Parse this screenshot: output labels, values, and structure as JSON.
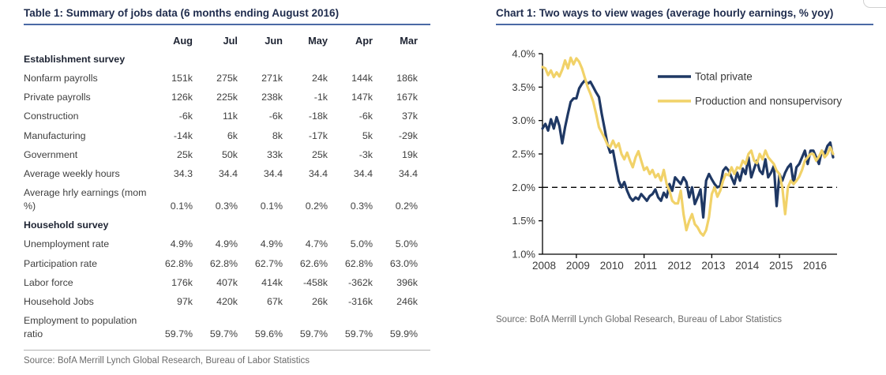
{
  "left_panel": {
    "title": "Table 1: Summary of jobs data (6 months ending August 2016)",
    "columns": [
      "Aug",
      "Jul",
      "Jun",
      "May",
      "Apr",
      "Mar"
    ],
    "rows": [
      {
        "label": "Establishment survey",
        "section": true,
        "values": [
          "",
          "",
          "",
          "",
          "",
          ""
        ]
      },
      {
        "label": "Nonfarm payrolls",
        "values": [
          "151k",
          "275k",
          "271k",
          "24k",
          "144k",
          "186k"
        ]
      },
      {
        "label": "Private payrolls",
        "values": [
          "126k",
          "225k",
          "238k",
          "-1k",
          "147k",
          "167k"
        ]
      },
      {
        "label": "Construction",
        "values": [
          "-6k",
          "11k",
          "-6k",
          "-18k",
          "-6k",
          "37k"
        ]
      },
      {
        "label": "Manufacturing",
        "values": [
          "-14k",
          "6k",
          "8k",
          "-17k",
          "5k",
          "-29k"
        ]
      },
      {
        "label": "Government",
        "values": [
          "25k",
          "50k",
          "33k",
          "25k",
          "-3k",
          "19k"
        ]
      },
      {
        "label": "Average weekly hours",
        "values": [
          "34.3",
          "34.4",
          "34.4",
          "34.4",
          "34.4",
          "34.4"
        ]
      },
      {
        "label": "Average hrly earnings (mom %)",
        "values": [
          "0.1%",
          "0.3%",
          "0.1%",
          "0.2%",
          "0.3%",
          "0.2%"
        ]
      },
      {
        "label": "Household survey",
        "section": true,
        "values": [
          "",
          "",
          "",
          "",
          "",
          ""
        ]
      },
      {
        "label": "Unemployment rate",
        "values": [
          "4.9%",
          "4.9%",
          "4.9%",
          "4.7%",
          "5.0%",
          "5.0%"
        ]
      },
      {
        "label": "Participation rate",
        "values": [
          "62.8%",
          "62.8%",
          "62.7%",
          "62.6%",
          "62.8%",
          "63.0%"
        ]
      },
      {
        "label": "Labor force",
        "values": [
          "176k",
          "407k",
          "414k",
          "-458k",
          "-362k",
          "396k"
        ]
      },
      {
        "label": "Household Jobs",
        "values": [
          "97k",
          "420k",
          "67k",
          "26k",
          "-316k",
          "246k"
        ]
      },
      {
        "label": "Employment to population ratio",
        "values": [
          "59.7%",
          "59.7%",
          "59.6%",
          "59.7%",
          "59.7%",
          "59.9%"
        ]
      }
    ],
    "source": "Source: BofA Merrill Lynch Global Research, Bureau of Labor Statistics"
  },
  "right_panel": {
    "title": "Chart 1: Two ways to view wages (average hourly earnings, % yoy)",
    "source": "Source: BofA Merrill Lynch Global Research, Bureau of Labor Statistics"
  },
  "chart_data": {
    "type": "line",
    "title": "Two ways to view wages (average hourly earnings, % yoy)",
    "x_start_year": 2008,
    "x_step_months": 1,
    "xlim": [
      2008.0,
      2016.7
    ],
    "ylim": [
      1.0,
      4.0
    ],
    "y_tick_step": 0.5,
    "y_tick_labels": [
      "1.0%",
      "1.5%",
      "2.0%",
      "2.5%",
      "3.0%",
      "3.5%",
      "4.0%"
    ],
    "x_year_labels": [
      2008,
      2009,
      2010,
      2011,
      2012,
      2013,
      2014,
      2015,
      2016
    ],
    "x_tick_years": [
      2009,
      2011,
      2013,
      2015
    ],
    "reference_line_y": 2.0,
    "grid": false,
    "legend_position": "inside-top",
    "series": [
      {
        "name": "Total private",
        "color": "#1f3864",
        "values": [
          2.88,
          2.95,
          2.85,
          3.02,
          2.88,
          3.05,
          2.92,
          2.66,
          2.9,
          3.1,
          3.28,
          3.33,
          3.33,
          3.48,
          3.55,
          3.6,
          3.55,
          3.58,
          3.5,
          3.42,
          3.35,
          3.1,
          2.88,
          2.65,
          2.52,
          2.55,
          2.32,
          2.1,
          2.0,
          2.08,
          1.95,
          1.85,
          1.8,
          1.85,
          1.82,
          1.9,
          1.85,
          1.8,
          1.87,
          1.9,
          1.97,
          1.85,
          1.8,
          1.92,
          1.85,
          2.05,
          1.95,
          2.15,
          2.1,
          2.05,
          2.15,
          2.08,
          1.85,
          2.0,
          1.75,
          1.85,
          1.97,
          1.55,
          2.1,
          2.2,
          2.12,
          2.05,
          2.0,
          2.02,
          2.25,
          2.3,
          2.25,
          2.15,
          2.05,
          2.22,
          2.1,
          2.28,
          2.2,
          2.45,
          2.15,
          2.28,
          2.4,
          2.25,
          2.2,
          2.42,
          2.15,
          2.22,
          2.32,
          1.72,
          2.2,
          2.1,
          2.22,
          2.3,
          2.35,
          2.05,
          2.3,
          2.35,
          2.45,
          2.55,
          2.35,
          2.55,
          2.55,
          2.45,
          2.35,
          2.55,
          2.5,
          2.62,
          2.67,
          2.45
        ]
      },
      {
        "name": "Production and nonsupervisory",
        "color": "#f1d269",
        "values": [
          3.8,
          3.78,
          3.68,
          3.75,
          3.65,
          3.72,
          3.66,
          3.76,
          3.9,
          3.78,
          3.94,
          3.84,
          3.93,
          3.88,
          3.78,
          3.64,
          3.5,
          3.4,
          3.28,
          3.1,
          2.9,
          2.82,
          2.74,
          2.64,
          2.6,
          2.7,
          2.6,
          2.66,
          2.5,
          2.42,
          2.52,
          2.4,
          2.3,
          2.45,
          2.54,
          2.4,
          2.26,
          2.3,
          2.2,
          2.26,
          2.15,
          2.2,
          2.1,
          2.26,
          2.05,
          1.95,
          1.8,
          1.76,
          1.76,
          1.95,
          1.6,
          1.36,
          1.5,
          1.6,
          1.45,
          1.4,
          1.32,
          1.28,
          1.36,
          1.55,
          1.9,
          2.0,
          1.86,
          1.95,
          2.1,
          2.2,
          2.18,
          2.3,
          2.2,
          2.3,
          2.28,
          2.4,
          2.35,
          2.5,
          2.55,
          2.4,
          2.36,
          2.5,
          2.42,
          2.55,
          2.45,
          2.4,
          2.35,
          2.25,
          2.2,
          2.0,
          1.6,
          2.0,
          2.1,
          2.05,
          2.1,
          2.16,
          2.26,
          2.4,
          2.45,
          2.5,
          2.5,
          2.4,
          2.46,
          2.55,
          2.45,
          2.5,
          2.6,
          2.5
        ]
      }
    ]
  },
  "colors": {
    "title_text": "#1f2c4d",
    "title_underline": "#4a69a5",
    "body_text": "#3f3f3f",
    "bold_text": "#1e2433",
    "source_text": "#6b6b6b",
    "axis": "#000000",
    "navy_series": "#1f3864",
    "gold_series": "#f1d269"
  }
}
